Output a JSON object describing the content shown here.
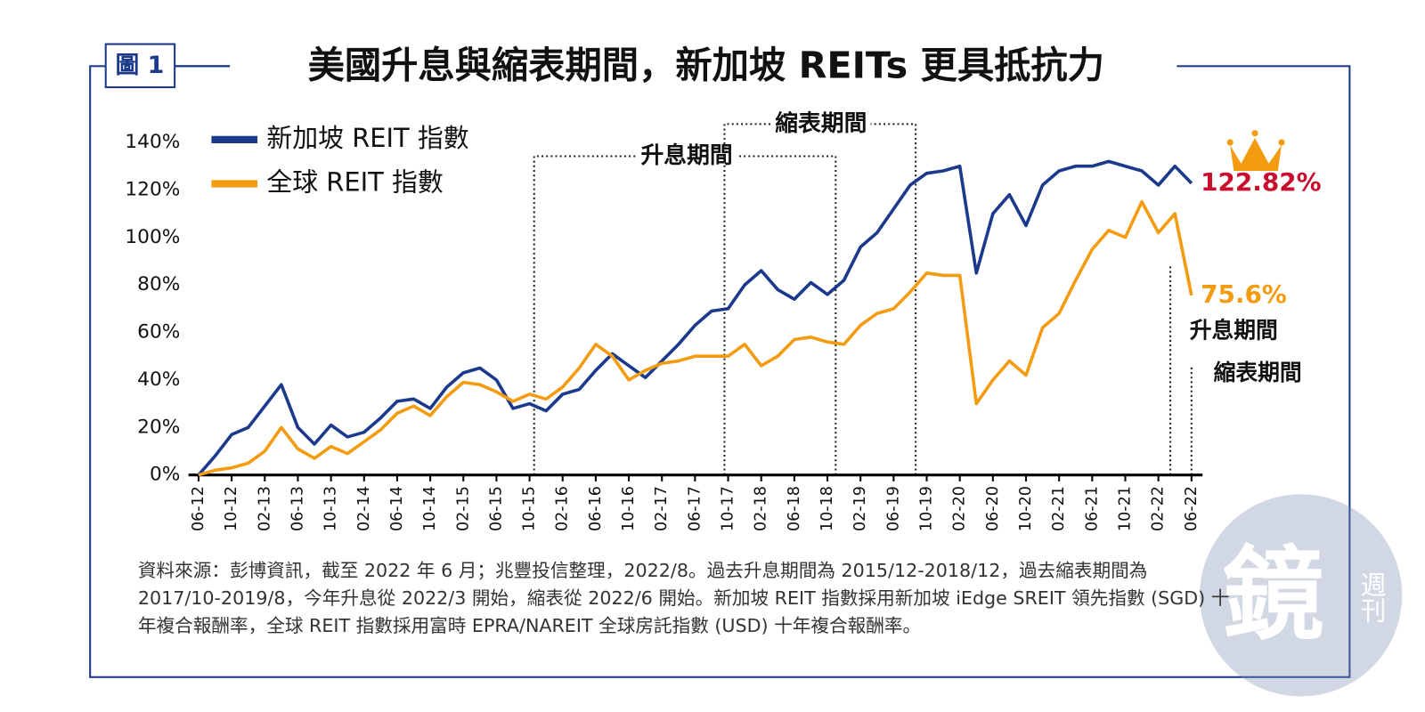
{
  "badge": "圖 1",
  "chart_data": {
    "type": "line",
    "title": "美國升息與縮表期間，新加坡 REITs 更具抵抗力",
    "categories": [
      "06-12",
      null,
      "10-12",
      null,
      "02-13",
      null,
      "06-13",
      null,
      "10-13",
      null,
      "02-14",
      null,
      "06-14",
      null,
      "10-14",
      null,
      "02-15",
      null,
      "06-15",
      null,
      "10-15",
      null,
      "02-16",
      null,
      "06-16",
      null,
      "10-16",
      null,
      "02-17",
      null,
      "06-17",
      null,
      "10-17",
      null,
      "02-18",
      null,
      "06-18",
      null,
      "10-18",
      null,
      "02-19",
      null,
      "06-19",
      null,
      "10-19",
      null,
      "02-20",
      null,
      "06-20",
      null,
      "10-20",
      null,
      "02-21",
      null,
      "06-21",
      null,
      "10-21",
      null,
      "02-22",
      null,
      "06-22"
    ],
    "series": [
      {
        "name": "新加坡 REIT 指數",
        "color": "#1c3a8c",
        "values": [
          0,
          8,
          17,
          20,
          29,
          38,
          20,
          13,
          21,
          16,
          18,
          24,
          31,
          32,
          28,
          37,
          43,
          45,
          40,
          28,
          30,
          27,
          34,
          36,
          44,
          51,
          46,
          41,
          48,
          55,
          63,
          69,
          70,
          80,
          86,
          78,
          74,
          81,
          76,
          82,
          96,
          102,
          112,
          122,
          127,
          128,
          130,
          85,
          110,
          118,
          105,
          122,
          128,
          130,
          130,
          132,
          130,
          128,
          122,
          130,
          122.82
        ],
        "value_labels": [
          null,
          null,
          null,
          null,
          null,
          null,
          null,
          null,
          null,
          null,
          null,
          null,
          null,
          null,
          null,
          null,
          null,
          null,
          null,
          null,
          null,
          null,
          null,
          null,
          null,
          null,
          null,
          null,
          null,
          null,
          null,
          null,
          null,
          null,
          null,
          null,
          null,
          null,
          null,
          null,
          null,
          null,
          null,
          null,
          null,
          null,
          null,
          null,
          null,
          null,
          null,
          null,
          null,
          null,
          null,
          null,
          null,
          null,
          null,
          null,
          "122.82%"
        ],
        "label_color": "#c8102e"
      },
      {
        "name": "全球 REIT 指數",
        "color": "#f39c12",
        "values": [
          0,
          2,
          3,
          5,
          10,
          20,
          11,
          7,
          12,
          9,
          14,
          19,
          26,
          29,
          25,
          33,
          39,
          38,
          35,
          31,
          34,
          32,
          37,
          45,
          55,
          50,
          40,
          44,
          47,
          48,
          50,
          50,
          50,
          55,
          46,
          50,
          57,
          58,
          56,
          55,
          63,
          68,
          70,
          77,
          85,
          84,
          84,
          30,
          40,
          48,
          42,
          62,
          68,
          82,
          95,
          103,
          100,
          115,
          102,
          110,
          75.6
        ],
        "value_labels": [
          null,
          null,
          null,
          null,
          null,
          null,
          null,
          null,
          null,
          null,
          null,
          null,
          null,
          null,
          null,
          null,
          null,
          null,
          null,
          null,
          null,
          null,
          null,
          null,
          null,
          null,
          null,
          null,
          null,
          null,
          null,
          null,
          null,
          null,
          null,
          null,
          null,
          null,
          null,
          null,
          null,
          null,
          null,
          null,
          null,
          null,
          null,
          null,
          null,
          null,
          null,
          null,
          null,
          null,
          null,
          null,
          null,
          null,
          null,
          null,
          "75.6%"
        ],
        "label_color": "#f39c12"
      }
    ],
    "ylim": [
      0,
      140
    ],
    "yticks": [
      {
        "value": 0,
        "label": "0%"
      },
      {
        "value": 20,
        "label": "20%"
      },
      {
        "value": 40,
        "label": "40%"
      },
      {
        "value": 60,
        "label": "60%"
      },
      {
        "value": 80,
        "label": "80%"
      },
      {
        "value": 100,
        "label": "100%"
      },
      {
        "value": 120,
        "label": "120%"
      },
      {
        "value": 140,
        "label": "140%"
      }
    ],
    "annotations": [
      "升息期間",
      "縮表期間",
      "升息期間",
      "縮表期間"
    ],
    "legend": "top-left"
  },
  "footnote": [
    "資料來源：彭博資訊，截至 2022 年 6 月；兆豐投信整理，2022/8。過去升息期間為 2015/12-2018/12，過去縮表期間為",
    "2017/10-2019/8，今年升息從 2022/3 開始，縮表從 2022/6 開始。新加坡 REIT 指數採用新加坡 iEdge SREIT 領先指數 (SGD) 十",
    "年複合報酬率，全球 REIT 指數採用富時 EPRA/NAREIT 全球房託指數 (USD) 十年複合報酬率。"
  ],
  "watermark": [
    "鏡",
    "週刊"
  ]
}
